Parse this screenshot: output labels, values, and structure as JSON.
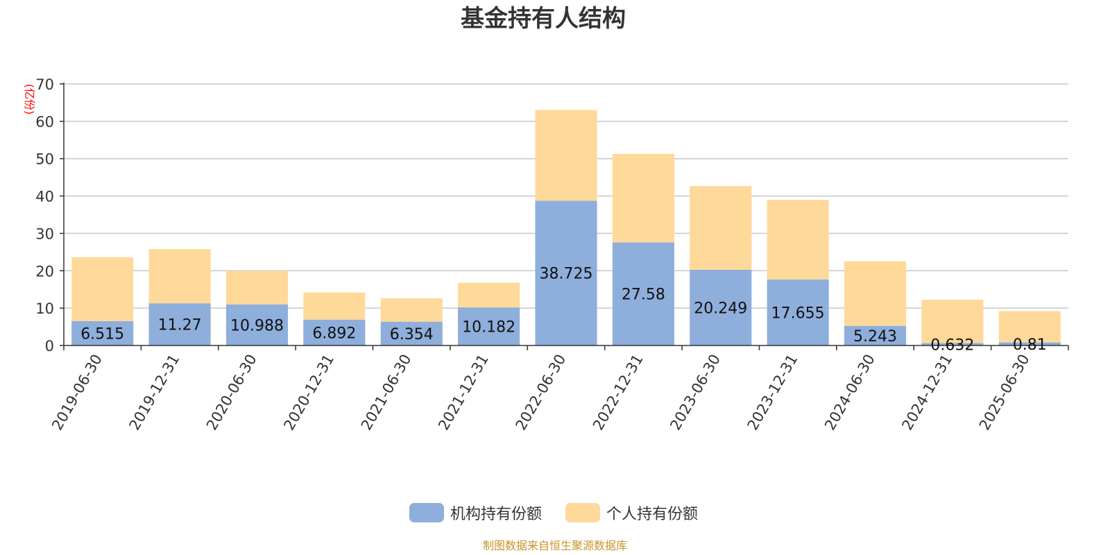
{
  "chart_data": {
    "type": "bar",
    "stacked": true,
    "title": "基金持有人结构",
    "unit_label": "(亿份)",
    "source_note": "制图数据来自恒生聚源数据库",
    "categories": [
      "2019-06-30",
      "2019-12-31",
      "2020-06-30",
      "2020-12-31",
      "2021-06-30",
      "2021-12-31",
      "2022-06-30",
      "2022-12-31",
      "2023-06-30",
      "2023-12-31",
      "2024-06-30",
      "2024-12-31",
      "2025-06-30"
    ],
    "ylim": [
      0,
      70
    ],
    "yticks": [
      0,
      10,
      20,
      30,
      40,
      50,
      60,
      70
    ],
    "grid": true,
    "legend_position": "bottom-center",
    "series": [
      {
        "name": "机构持有份额",
        "color": "#8eaedb",
        "values": [
          6.515,
          11.27,
          10.988,
          6.892,
          6.354,
          10.182,
          38.725,
          27.58,
          20.249,
          17.655,
          5.243,
          0.632,
          0.81
        ],
        "labels": [
          "6.515",
          "11.27",
          "10.988",
          "6.892",
          "6.354",
          "10.182",
          "38.725",
          "27.58",
          "20.249",
          "17.655",
          "5.243",
          "0.632",
          "0.81"
        ]
      },
      {
        "name": "个人持有份额",
        "color": "#ffd999",
        "values": [
          17.1,
          14.5,
          9.0,
          7.3,
          6.3,
          6.6,
          24.3,
          23.7,
          22.4,
          21.3,
          17.3,
          11.6,
          8.4
        ]
      }
    ]
  }
}
